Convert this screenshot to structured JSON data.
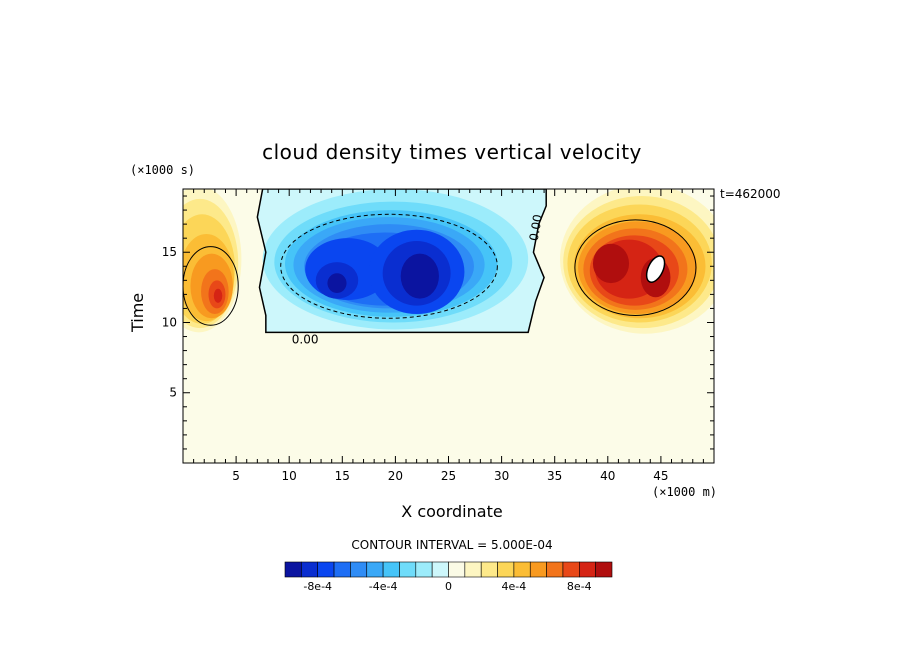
{
  "chart_data": {
    "type": "heatmap",
    "title": "cloud density times vertical velocity",
    "xlabel": "X coordinate",
    "ylabel": "Time",
    "x_unit": "(×1000 m)",
    "y_unit": "(×1000 s)",
    "time_stamp": "t=462000",
    "contour_interval_text": "CONTOUR INTERVAL = 5.000E-04",
    "xlim": [
      0,
      50
    ],
    "ylim": [
      0,
      19.5
    ],
    "x_ticks": [
      5,
      10,
      15,
      20,
      25,
      30,
      35,
      40,
      45
    ],
    "y_ticks": [
      5,
      10,
      15
    ],
    "contour_label": "0.00",
    "colorbar": {
      "tick_labels": [
        "-8e-4",
        "-4e-4",
        "0",
        "4e-4",
        "8e-4"
      ],
      "tick_values": [
        -0.0008,
        -0.0004,
        0,
        0.0004,
        0.0008
      ],
      "levels": [
        -0.001,
        -0.0009,
        -0.0008,
        -0.0007,
        -0.0006,
        -0.0005,
        -0.0004,
        -0.0003,
        -0.0002,
        -0.0001,
        0,
        0.0001,
        0.0002,
        0.0003,
        0.0004,
        0.0005,
        0.0006,
        0.0007,
        0.0008,
        0.0009,
        0.001
      ],
      "colors": [
        "#0b14a0",
        "#0a2ed0",
        "#0a46f0",
        "#1e6ef5",
        "#2f8cf5",
        "#3aa8f7",
        "#46c4f8",
        "#6fdcfa",
        "#9cecfb",
        "#cdf7fb",
        "#fbfbe6",
        "#fdf6c2",
        "#fde98a",
        "#fcd658",
        "#fbbd35",
        "#f89a20",
        "#f2741b",
        "#e84818",
        "#d52414",
        "#b00e0e"
      ]
    },
    "features": [
      {
        "sign": "positive",
        "x_range": [
          0,
          5
        ],
        "y_range": [
          9.5,
          19.5
        ],
        "peak": 0.0007,
        "peak_at": [
          3,
          12
        ]
      },
      {
        "sign": "negative",
        "x_range": [
          7.5,
          34
        ],
        "y_range": [
          9,
          19.5
        ],
        "peak": -0.001,
        "peak_at": [
          22,
          13.5
        ]
      },
      {
        "sign": "positive",
        "x_range": [
          35,
          50
        ],
        "y_range": [
          9.5,
          19.5
        ],
        "peak": 0.001,
        "peak_at": [
          44.5,
          13.5
        ]
      }
    ]
  }
}
